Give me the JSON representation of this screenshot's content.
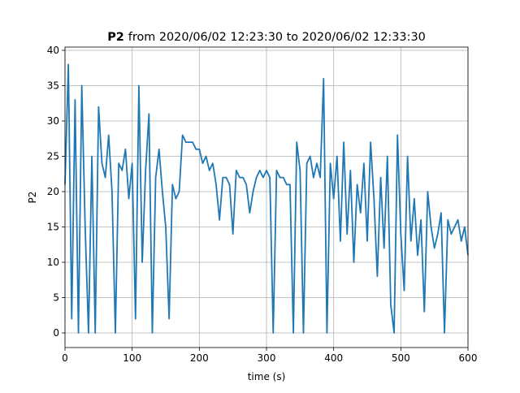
{
  "chart_data": {
    "type": "line",
    "title_parts": [
      "P2",
      "from 2020/06/02 12:23:30 to 2020/06/02 12:33:30"
    ],
    "x_label": "time (s)",
    "y_label": "P2",
    "x": [
      0,
      5,
      10,
      15,
      20,
      25,
      30,
      35,
      40,
      45,
      50,
      55,
      60,
      65,
      70,
      75,
      80,
      85,
      90,
      95,
      100,
      105,
      110,
      115,
      120,
      125,
      130,
      135,
      140,
      145,
      150,
      155,
      160,
      165,
      170,
      175,
      180,
      185,
      190,
      195,
      200,
      205,
      210,
      215,
      220,
      225,
      230,
      235,
      240,
      245,
      250,
      255,
      260,
      265,
      270,
      275,
      280,
      285,
      290,
      295,
      300,
      305,
      310,
      315,
      320,
      325,
      330,
      335,
      340,
      345,
      350,
      355,
      360,
      365,
      370,
      375,
      380,
      385,
      390,
      395,
      400,
      405,
      410,
      415,
      420,
      425,
      430,
      435,
      440,
      445,
      450,
      455,
      460,
      465,
      470,
      475,
      480,
      485,
      490,
      495,
      500,
      505,
      510,
      515,
      520,
      525,
      530,
      535,
      540,
      545,
      550,
      555,
      560,
      565,
      570,
      575,
      580,
      585,
      590,
      595,
      600
    ],
    "series": [
      {
        "name": "P2",
        "color": "#1f77b4",
        "values": [
          21,
          38,
          2,
          33,
          0,
          35,
          15,
          0,
          25,
          0,
          32,
          24,
          22,
          28,
          20,
          0,
          24,
          23,
          26,
          19,
          24,
          2,
          35,
          10,
          23,
          31,
          0,
          22,
          26,
          20,
          15,
          2,
          21,
          19,
          20,
          28,
          27,
          27,
          27,
          26,
          26,
          24,
          25,
          23,
          24,
          21,
          16,
          22,
          22,
          21,
          14,
          23,
          22,
          22,
          21,
          17,
          20,
          22,
          23,
          22,
          23,
          22,
          0,
          23,
          22,
          22,
          21,
          21,
          0,
          27,
          23,
          0,
          24,
          25,
          22,
          24,
          22,
          36,
          0,
          24,
          19,
          25,
          13,
          27,
          14,
          23,
          10,
          21,
          17,
          24,
          13,
          27,
          19,
          8,
          22,
          12,
          25,
          4,
          0,
          28,
          14,
          6,
          25,
          13,
          19,
          11,
          16,
          3,
          20,
          15,
          12,
          14,
          17,
          0,
          16,
          14,
          15,
          16,
          13,
          15,
          11
        ]
      }
    ],
    "xlim": [
      0,
      600
    ],
    "ylim": [
      -2.07,
      40.46
    ],
    "xticks": [
      0,
      100,
      200,
      300,
      400,
      500,
      600
    ],
    "yticks": [
      0,
      5,
      10,
      15,
      20,
      25,
      30,
      35,
      40
    ],
    "grid": true
  }
}
